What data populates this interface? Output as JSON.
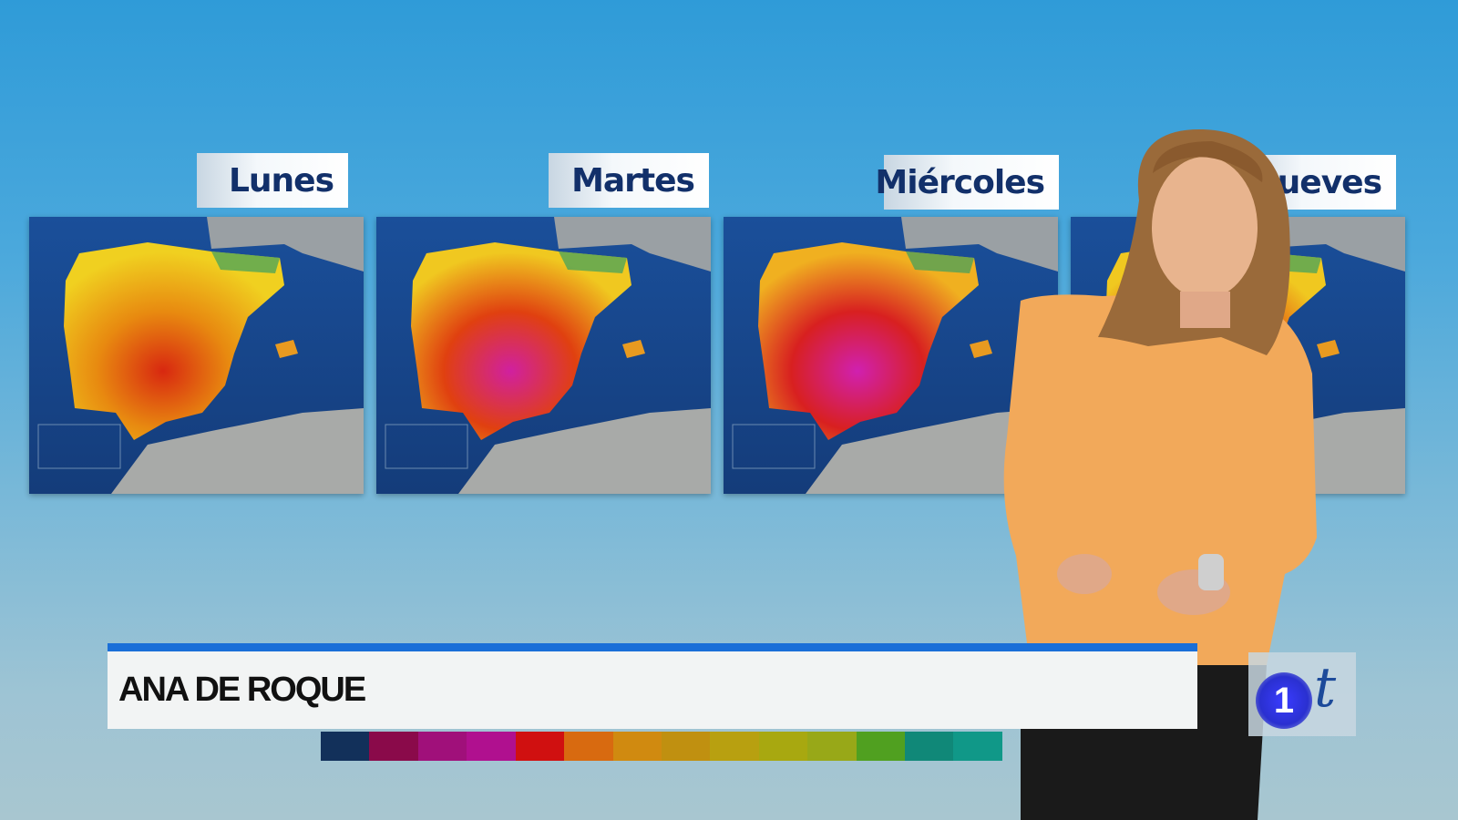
{
  "days": [
    {
      "label": "Lunes",
      "heat": 0
    },
    {
      "label": "Martes",
      "heat": 1
    },
    {
      "label": "Miércoles",
      "heat": 2
    },
    {
      "label": "Jueves",
      "heat": 1
    }
  ],
  "lower_third": {
    "name": "ANA DE ROQUE",
    "accent": "#1a6fd8"
  },
  "color_scale": [
    "#12305a",
    "#8a0a4a",
    "#a0107a",
    "#b0108f",
    "#d01010",
    "#d86a10",
    "#d08a10",
    "#c09010",
    "#b8a010",
    "#a8a810",
    "#98a818",
    "#50a020",
    "#108878",
    "#109888"
  ],
  "logo": {
    "channel": "1",
    "letter": "t"
  }
}
